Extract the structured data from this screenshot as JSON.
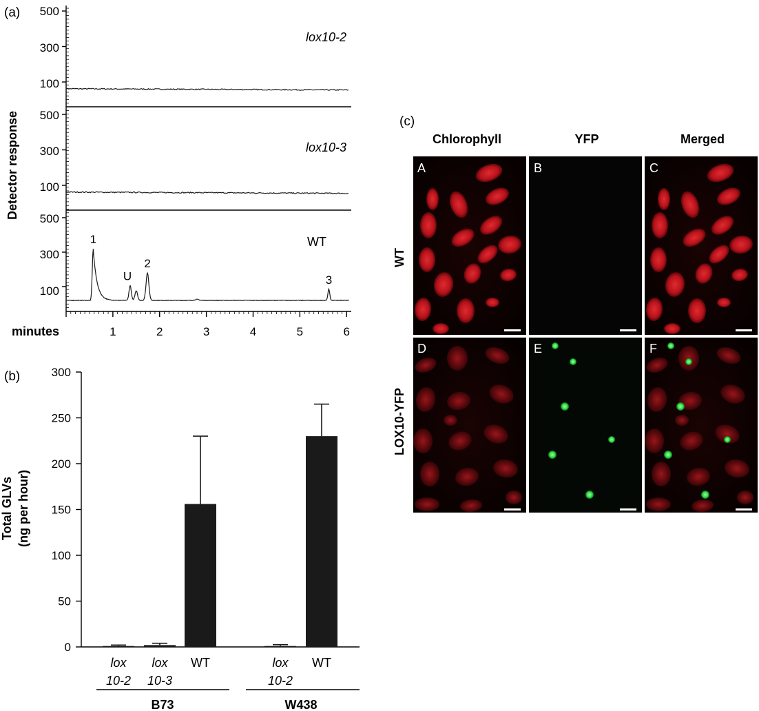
{
  "panel_a": {
    "panel_label": "(a)",
    "ylabel": "Detector response",
    "xlabel": "minutes",
    "x_ticks": [
      "1",
      "2",
      "3",
      "4",
      "5",
      "6"
    ],
    "subplots": [
      {
        "label": "lox10-2",
        "y_ticks": [
          "500",
          "300",
          "100"
        ]
      },
      {
        "label": "lox10-3",
        "y_ticks": [
          "500",
          "300",
          "100"
        ]
      },
      {
        "label": "WT",
        "y_ticks": [
          "500",
          "300",
          "100"
        ],
        "peaks": [
          {
            "label": "1",
            "x": 0.58,
            "y": 320
          },
          {
            "label": "U",
            "x": 1.37,
            "y": 105
          },
          {
            "label": "2",
            "x": 1.74,
            "y": 180
          },
          {
            "label": "3",
            "x": 5.62,
            "y": 85
          }
        ]
      }
    ]
  },
  "chart_data": {
    "type": "bar",
    "panel_label": "(b)",
    "ylabel": "Total GLVs",
    "ylabel2": "(ng per hour)",
    "ylim": [
      0,
      300
    ],
    "y_ticks": [
      "0",
      "50",
      "100",
      "150",
      "200",
      "250",
      "300"
    ],
    "groups": [
      {
        "name": "B73",
        "bars": [
          {
            "line1": "lox",
            "line2": "10-2",
            "value": 1,
            "error": 1
          },
          {
            "line1": "lox",
            "line2": "10-3",
            "value": 2,
            "error": 2
          },
          {
            "line1": "",
            "line2": "WT",
            "value": 156,
            "error": 74
          }
        ]
      },
      {
        "name": "W438",
        "bars": [
          {
            "line1": "lox",
            "line2": "10-2",
            "value": 1,
            "error": 1.5
          },
          {
            "line1": "",
            "line2": "WT",
            "value": 230,
            "error": 35
          }
        ]
      }
    ]
  },
  "panel_c": {
    "panel_label": "(c)",
    "column_headers": [
      "Chlorophyll",
      "YFP",
      "Merged"
    ],
    "row_labels": [
      "WT",
      "LOX10-YFP"
    ],
    "tiles": [
      {
        "letter": "A",
        "channel": "red"
      },
      {
        "letter": "B",
        "channel": "empty"
      },
      {
        "letter": "C",
        "channel": "red"
      },
      {
        "letter": "D",
        "channel": "red"
      },
      {
        "letter": "E",
        "channel": "green"
      },
      {
        "letter": "F",
        "channel": "both"
      }
    ],
    "colors": {
      "chloroplast": "#c8141e",
      "yfp": "#35e04a",
      "background": "#000000"
    }
  }
}
